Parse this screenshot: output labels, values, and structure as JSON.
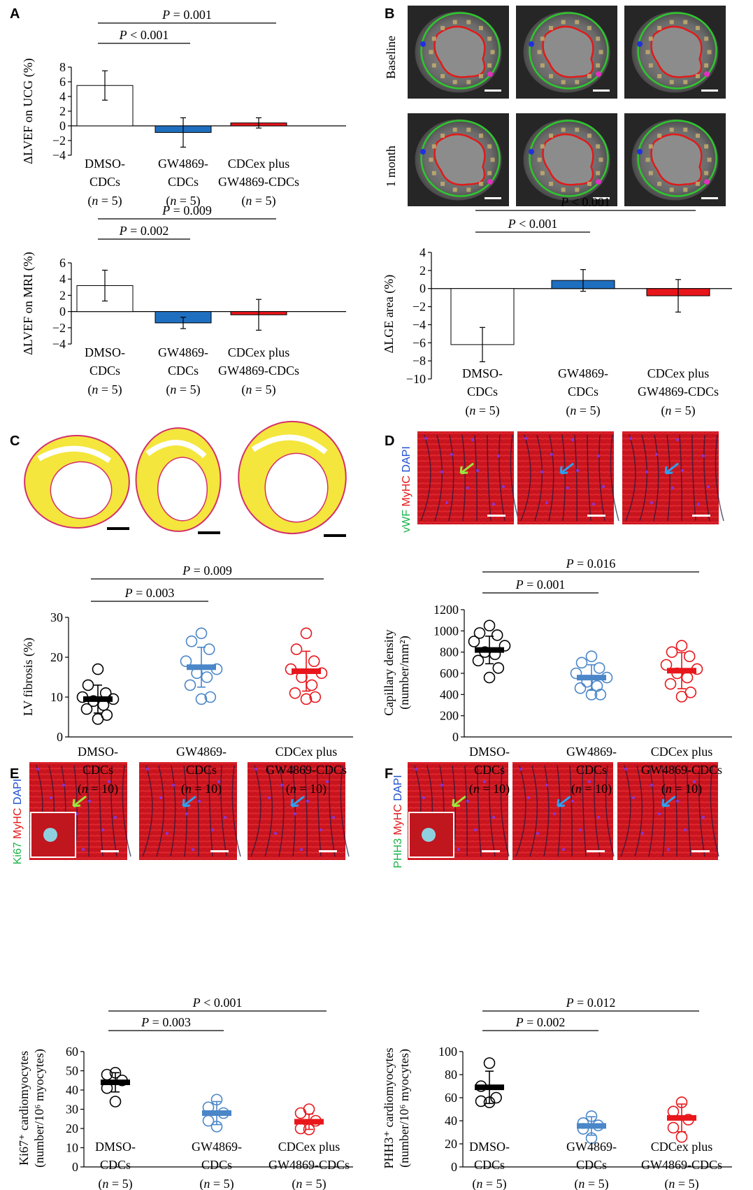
{
  "groups": [
    {
      "line1": "DMSO-",
      "line2": "CDCs"
    },
    {
      "line1": "GW4869-",
      "line2": "CDCs"
    },
    {
      "line1": "CDCex plus",
      "line2": "GW4869-CDCs"
    }
  ],
  "group_colors": {
    "dmso": "#000000",
    "gw": "#1F6FC0",
    "plus": "#E8161B",
    "gw_dot": "#4A86C8"
  },
  "stain_labels": {
    "D": [
      "vWF",
      "MyHC",
      "DAPI"
    ],
    "E": [
      "Ki67",
      "MyHC",
      "DAPI"
    ],
    "F": [
      "PHH3",
      "MyHC",
      "DAPI"
    ]
  },
  "row_labels": {
    "B": [
      "Baseline",
      "1 month"
    ]
  },
  "chart_data": [
    {
      "id": "A1",
      "panel": "A",
      "type": "bar",
      "ylabel": "ΔLVEF on UCG (%)",
      "ylim": [
        -4,
        8
      ],
      "yticks": [
        -4,
        -2,
        0,
        2,
        4,
        6,
        8
      ],
      "values": [
        5.5,
        -0.9,
        0.4
      ],
      "errors": [
        2.0,
        2.0,
        0.7
      ],
      "n_label": "n = 5",
      "comparisons": [
        {
          "from": 0,
          "to": 1,
          "label": "P < 0.001"
        },
        {
          "from": 0,
          "to": 2,
          "label": "P = 0.001"
        }
      ]
    },
    {
      "id": "A2",
      "panel": "A",
      "type": "bar",
      "ylabel": "ΔLVEF on MRI (%)",
      "ylim": [
        -4,
        6
      ],
      "yticks": [
        -4,
        -2,
        0,
        2,
        4,
        6
      ],
      "values": [
        3.2,
        -1.4,
        -0.4
      ],
      "errors": [
        1.9,
        0.7,
        1.9
      ],
      "n_label": "n = 5",
      "comparisons": [
        {
          "from": 0,
          "to": 1,
          "label": "P = 0.002"
        },
        {
          "from": 0,
          "to": 2,
          "label": "P = 0.009"
        }
      ]
    },
    {
      "id": "B",
      "panel": "B",
      "type": "bar",
      "ylabel": "ΔLGE area (%)",
      "ylim": [
        -10,
        4
      ],
      "yticks": [
        -10,
        -8,
        -6,
        -4,
        -2,
        0,
        2,
        4
      ],
      "values": [
        -6.2,
        0.9,
        -0.8
      ],
      "errors": [
        1.9,
        1.2,
        1.8
      ],
      "n_label": "n = 5",
      "comparisons": [
        {
          "from": 0,
          "to": 1,
          "label": "P < 0.001"
        },
        {
          "from": 0,
          "to": 2,
          "label": "P < 0.001"
        }
      ]
    },
    {
      "id": "C",
      "panel": "C",
      "type": "scatter",
      "ylabel": "LV fibrosis (%)",
      "ylim": [
        0,
        30
      ],
      "yticks": [
        0,
        10,
        20,
        30
      ],
      "means": [
        9.5,
        17.5,
        16.5
      ],
      "sds": [
        3.5,
        5.0,
        5.0
      ],
      "n_label": "n = 10",
      "points": [
        [
          17,
          13,
          11,
          10,
          9.5,
          9,
          8,
          7,
          5.5,
          4.5
        ],
        [
          26,
          24,
          22,
          19,
          17,
          16,
          15,
          13,
          10,
          9.5
        ],
        [
          26,
          22,
          19,
          17,
          16,
          15,
          13,
          11,
          10,
          9.5
        ]
      ],
      "comparisons": [
        {
          "from": 0,
          "to": 1,
          "label": "P = 0.003"
        },
        {
          "from": 0,
          "to": 2,
          "label": "P = 0.009"
        }
      ]
    },
    {
      "id": "D",
      "panel": "D",
      "type": "scatter",
      "ylabel": "Capillary density",
      "ylabel2": "(number/mm²)",
      "ylim": [
        0,
        1200
      ],
      "yticks": [
        0,
        200,
        400,
        600,
        800,
        1000,
        1200
      ],
      "means": [
        820,
        560,
        625
      ],
      "sds": [
        130,
        120,
        170
      ],
      "n_label": "n = 10",
      "points": [
        [
          1050,
          980,
          960,
          900,
          860,
          800,
          780,
          720,
          650,
          560
        ],
        [
          760,
          700,
          650,
          600,
          560,
          520,
          480,
          460,
          400,
          400
        ],
        [
          860,
          800,
          760,
          680,
          640,
          600,
          560,
          500,
          420,
          380
        ]
      ],
      "comparisons": [
        {
          "from": 0,
          "to": 1,
          "label": "P = 0.001"
        },
        {
          "from": 0,
          "to": 2,
          "label": "P = 0.016"
        }
      ]
    },
    {
      "id": "E",
      "panel": "E",
      "type": "scatter",
      "ylabel": "Ki67⁺ cardiomyocytes",
      "ylabel2": "(number/10⁶ myocytes)",
      "ylim": [
        0,
        60
      ],
      "yticks": [
        0,
        10,
        20,
        30,
        40,
        50,
        60
      ],
      "means": [
        44,
        28,
        23.5
      ],
      "sds": [
        5,
        6,
        4
      ],
      "n_label": "n = 5",
      "points": [
        [
          49,
          48,
          45,
          41,
          34
        ],
        [
          35,
          31,
          28,
          24,
          21
        ],
        [
          30,
          28,
          24,
          20,
          19.5
        ]
      ],
      "comparisons": [
        {
          "from": 0,
          "to": 1,
          "label": "P = 0.003"
        },
        {
          "from": 0,
          "to": 2,
          "label": "P < 0.001"
        }
      ]
    },
    {
      "id": "F",
      "panel": "F",
      "type": "scatter",
      "ylabel": "PHH3⁺ cardiomyocytes",
      "ylabel2": "(number/10⁶ myocytes)",
      "ylim": [
        0,
        100
      ],
      "yticks": [
        0,
        20,
        40,
        60,
        80,
        100
      ],
      "means": [
        69,
        35.5,
        42.5
      ],
      "sds": [
        14,
        8,
        12
      ],
      "n_label": "n = 5",
      "points": [
        [
          90,
          70,
          60,
          57,
          56
        ],
        [
          44,
          38,
          36,
          33,
          25
        ],
        [
          56,
          48,
          41,
          34,
          26
        ]
      ],
      "comparisons": [
        {
          "from": 0,
          "to": 1,
          "label": "P = 0.002"
        },
        {
          "from": 0,
          "to": 2,
          "label": "P = 0.012"
        }
      ]
    }
  ]
}
